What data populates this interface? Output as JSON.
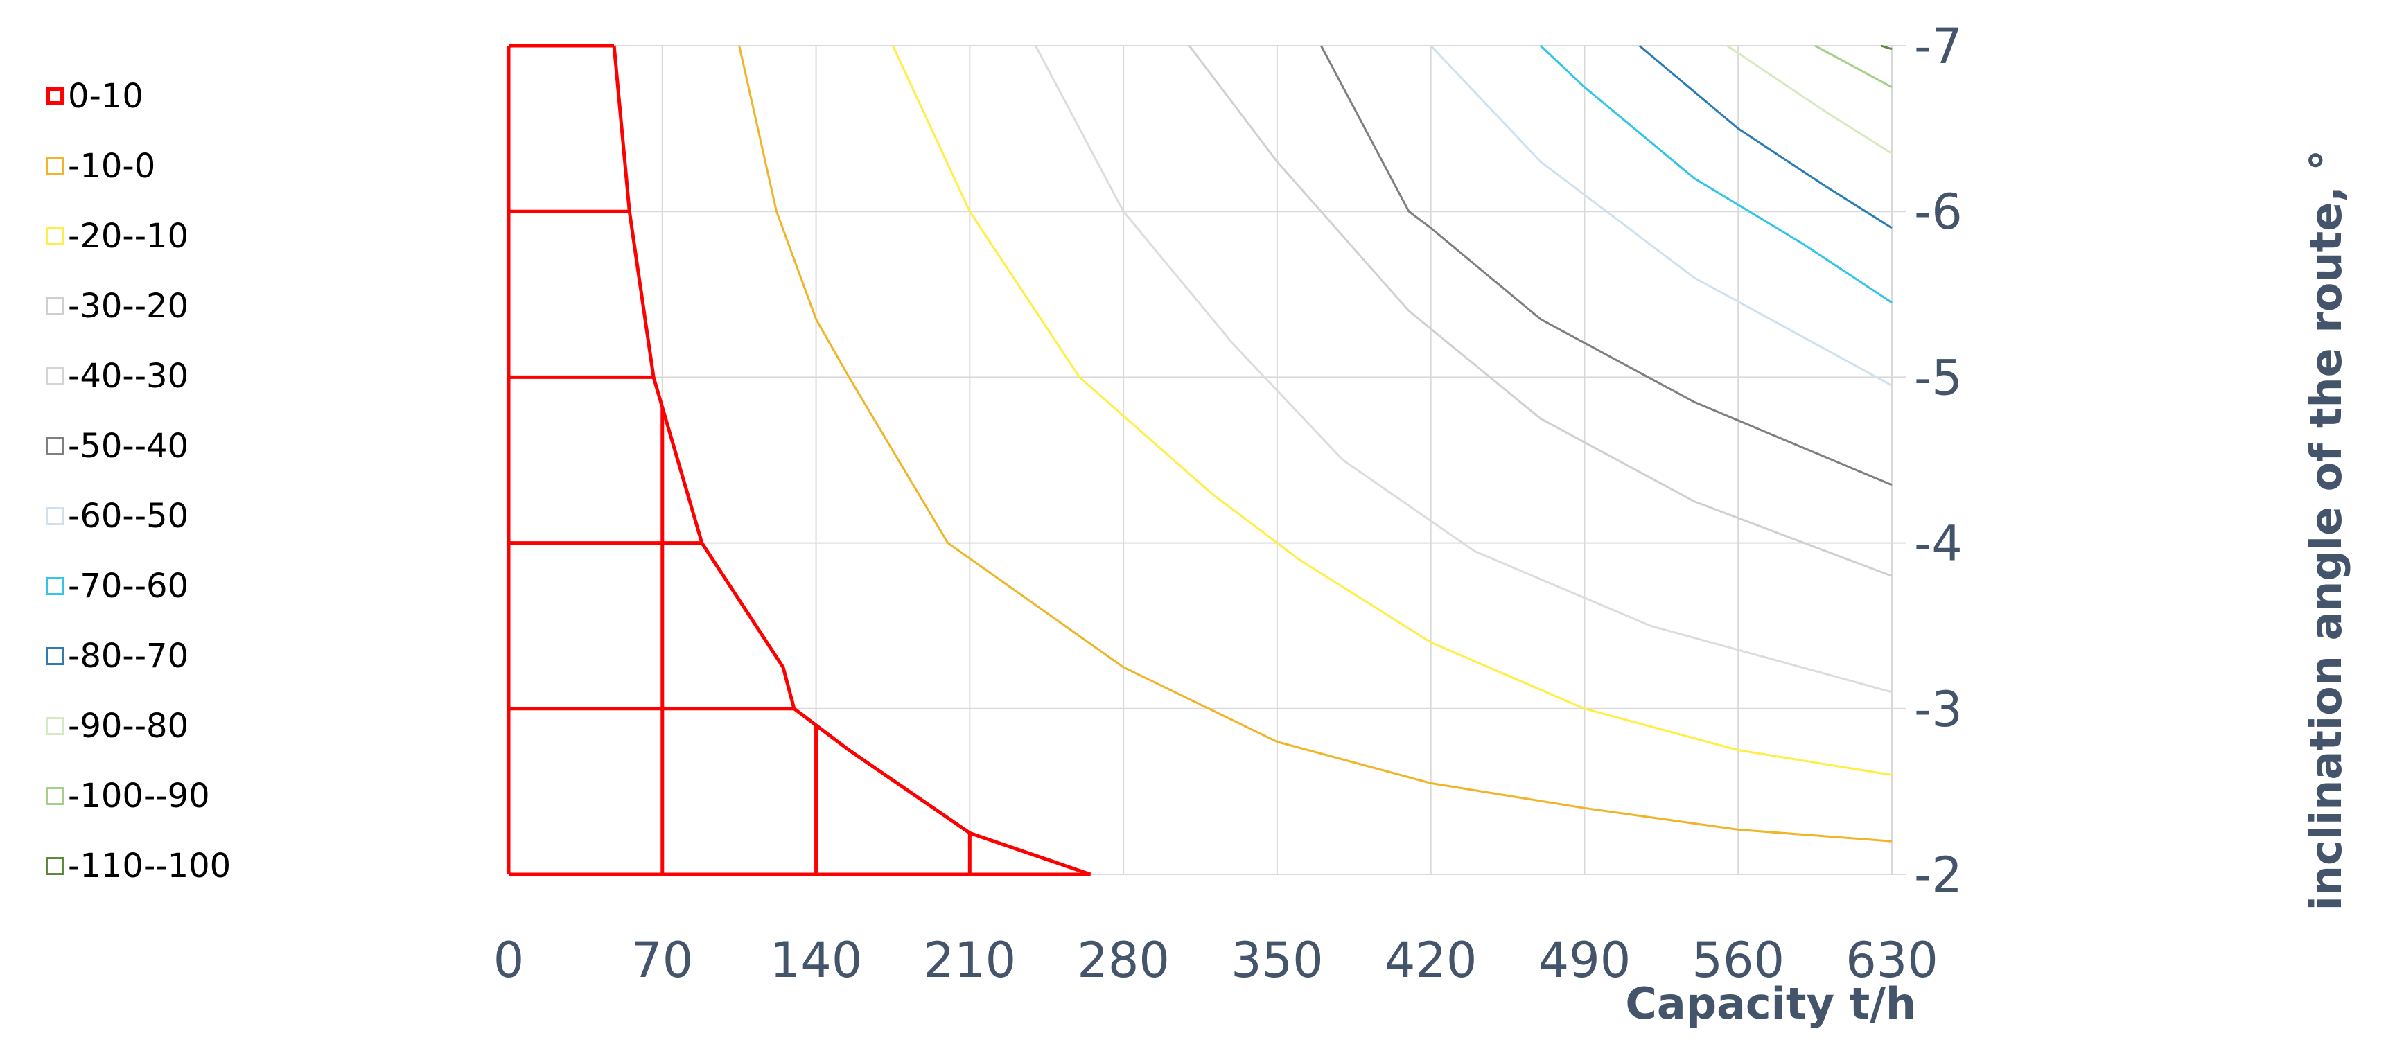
{
  "chart_data": {
    "type": "contour",
    "xlabel": "Capacity t/h",
    "ylabel": "inclination angle of the route, °",
    "x_ticks": [
      0,
      70,
      140,
      210,
      280,
      350,
      420,
      490,
      560,
      630
    ],
    "y_ticks": [
      -7,
      -6,
      -5,
      -4,
      -3,
      -2
    ],
    "xlim": [
      0,
      630
    ],
    "ylim": [
      -7,
      -2
    ],
    "y_axis_side": "right",
    "y_axis_reversed": true,
    "grid": true,
    "legend_position": "left",
    "legend": [
      {
        "label": "0-10",
        "color": "#ff0000"
      },
      {
        "label": "-10-0",
        "color": "#f0b428"
      },
      {
        "label": "-20--10",
        "color": "#ffee44"
      },
      {
        "label": "-30--20",
        "color": "#cfcfcf"
      },
      {
        "label": "-40--30",
        "color": "#d4d4d4"
      },
      {
        "label": "-50--40",
        "color": "#7f7f7f"
      },
      {
        "label": "-60--50",
        "color": "#cfe0ee"
      },
      {
        "label": "-70--60",
        "color": "#33c4ea"
      },
      {
        "label": "-80--70",
        "color": "#2a7cb6"
      },
      {
        "label": "-90--80",
        "color": "#d5eac0"
      },
      {
        "label": "-100--90",
        "color": "#a6d08a"
      },
      {
        "label": "-110--100",
        "color": "#5e8a40"
      }
    ],
    "contour_lines": [
      {
        "level": "0",
        "color": "#ff0000",
        "points": [
          [
            48,
            -7
          ],
          [
            55,
            -6
          ],
          [
            66,
            -5
          ],
          [
            88,
            -4
          ],
          [
            125,
            -3.25
          ],
          [
            130,
            -3
          ],
          [
            155,
            -2.75
          ],
          [
            210,
            -2.25
          ],
          [
            265,
            -2
          ]
        ]
      },
      {
        "level": "-10",
        "color": "#f0b428",
        "points": [
          [
            105,
            -7
          ],
          [
            122,
            -6
          ],
          [
            140,
            -5.35
          ],
          [
            155,
            -5
          ],
          [
            200,
            -4
          ],
          [
            280,
            -3.25
          ],
          [
            350,
            -2.8
          ],
          [
            420,
            -2.55
          ],
          [
            490,
            -2.4
          ],
          [
            560,
            -2.27
          ],
          [
            630,
            -2.2
          ]
        ]
      },
      {
        "level": "-20",
        "color": "#ffee44",
        "points": [
          [
            175,
            -7
          ],
          [
            210,
            -6
          ],
          [
            260,
            -5
          ],
          [
            320,
            -4.3
          ],
          [
            360,
            -3.9
          ],
          [
            420,
            -3.4
          ],
          [
            490,
            -3
          ],
          [
            560,
            -2.75
          ],
          [
            630,
            -2.6
          ]
        ]
      },
      {
        "level": "-30",
        "color": "#dcdcdc",
        "points": [
          [
            240,
            -7
          ],
          [
            280,
            -6
          ],
          [
            330,
            -5.2
          ],
          [
            380,
            -4.5
          ],
          [
            440,
            -3.95
          ],
          [
            520,
            -3.5
          ],
          [
            630,
            -3.1
          ]
        ]
      },
      {
        "level": "-40",
        "color": "#d0d0d0",
        "points": [
          [
            310,
            -7
          ],
          [
            350,
            -6.3
          ],
          [
            410,
            -5.4
          ],
          [
            470,
            -4.75
          ],
          [
            540,
            -4.25
          ],
          [
            630,
            -3.8
          ]
        ]
      },
      {
        "level": "-50",
        "color": "#7f7f7f",
        "points": [
          [
            370,
            -7
          ],
          [
            410,
            -6
          ],
          [
            420,
            -5.9
          ],
          [
            470,
            -5.35
          ],
          [
            540,
            -4.85
          ],
          [
            630,
            -4.35
          ]
        ]
      },
      {
        "level": "-60",
        "color": "#cfe0ee",
        "points": [
          [
            420,
            -7
          ],
          [
            470,
            -6.3
          ],
          [
            540,
            -5.6
          ],
          [
            630,
            -4.95
          ]
        ]
      },
      {
        "level": "-70",
        "color": "#33c4ea",
        "points": [
          [
            470,
            -7
          ],
          [
            490,
            -6.75
          ],
          [
            540,
            -6.2
          ],
          [
            590,
            -5.8
          ],
          [
            630,
            -5.45
          ]
        ]
      },
      {
        "level": "-80",
        "color": "#2a7cb6",
        "points": [
          [
            515,
            -7
          ],
          [
            560,
            -6.5
          ],
          [
            600,
            -6.15
          ],
          [
            630,
            -5.9
          ]
        ]
      },
      {
        "level": "-90",
        "color": "#d5eac0",
        "points": [
          [
            555,
            -7
          ],
          [
            600,
            -6.6
          ],
          [
            630,
            -6.35
          ]
        ]
      },
      {
        "level": "-100",
        "color": "#a6d08a",
        "points": [
          [
            595,
            -7
          ],
          [
            630,
            -6.75
          ]
        ]
      },
      {
        "level": "-110",
        "color": "#5e8a40",
        "points": [
          [
            625,
            -7
          ],
          [
            630,
            -6.98
          ]
        ]
      }
    ]
  }
}
